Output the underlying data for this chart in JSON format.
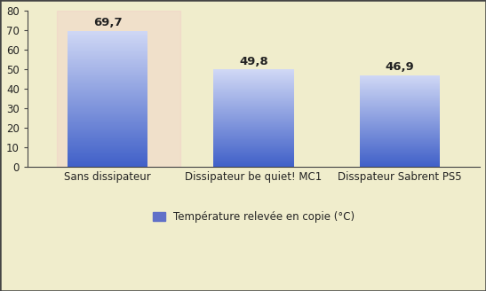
{
  "categories": [
    "Sans dissipateur",
    "Dissipateur be quiet! MC1",
    "Disspateur Sabrent PS5"
  ],
  "values": [
    69.7,
    49.8,
    46.9
  ],
  "bar_color_top": "#d0d8f5",
  "bar_color_bottom": "#4060c8",
  "ylim": [
    0,
    80
  ],
  "yticks": [
    0,
    10,
    20,
    30,
    40,
    50,
    60,
    70,
    80
  ],
  "legend_label": "Température relevée en copie (°C)",
  "legend_color": "#6070c8",
  "value_labels": [
    "69,7",
    "49,8",
    "46,9"
  ],
  "bg_color_main": "#f0edcc",
  "bg_color_pink": "#f0c8c8",
  "bg_color_yellow": "#f0edb0",
  "border_color": "#444444",
  "axis_label_color": "#222222",
  "bar_width": 0.55,
  "value_fontsize": 9.5,
  "tick_fontsize": 8.5,
  "legend_fontsize": 8.5,
  "x_positions": [
    0,
    1,
    2
  ]
}
